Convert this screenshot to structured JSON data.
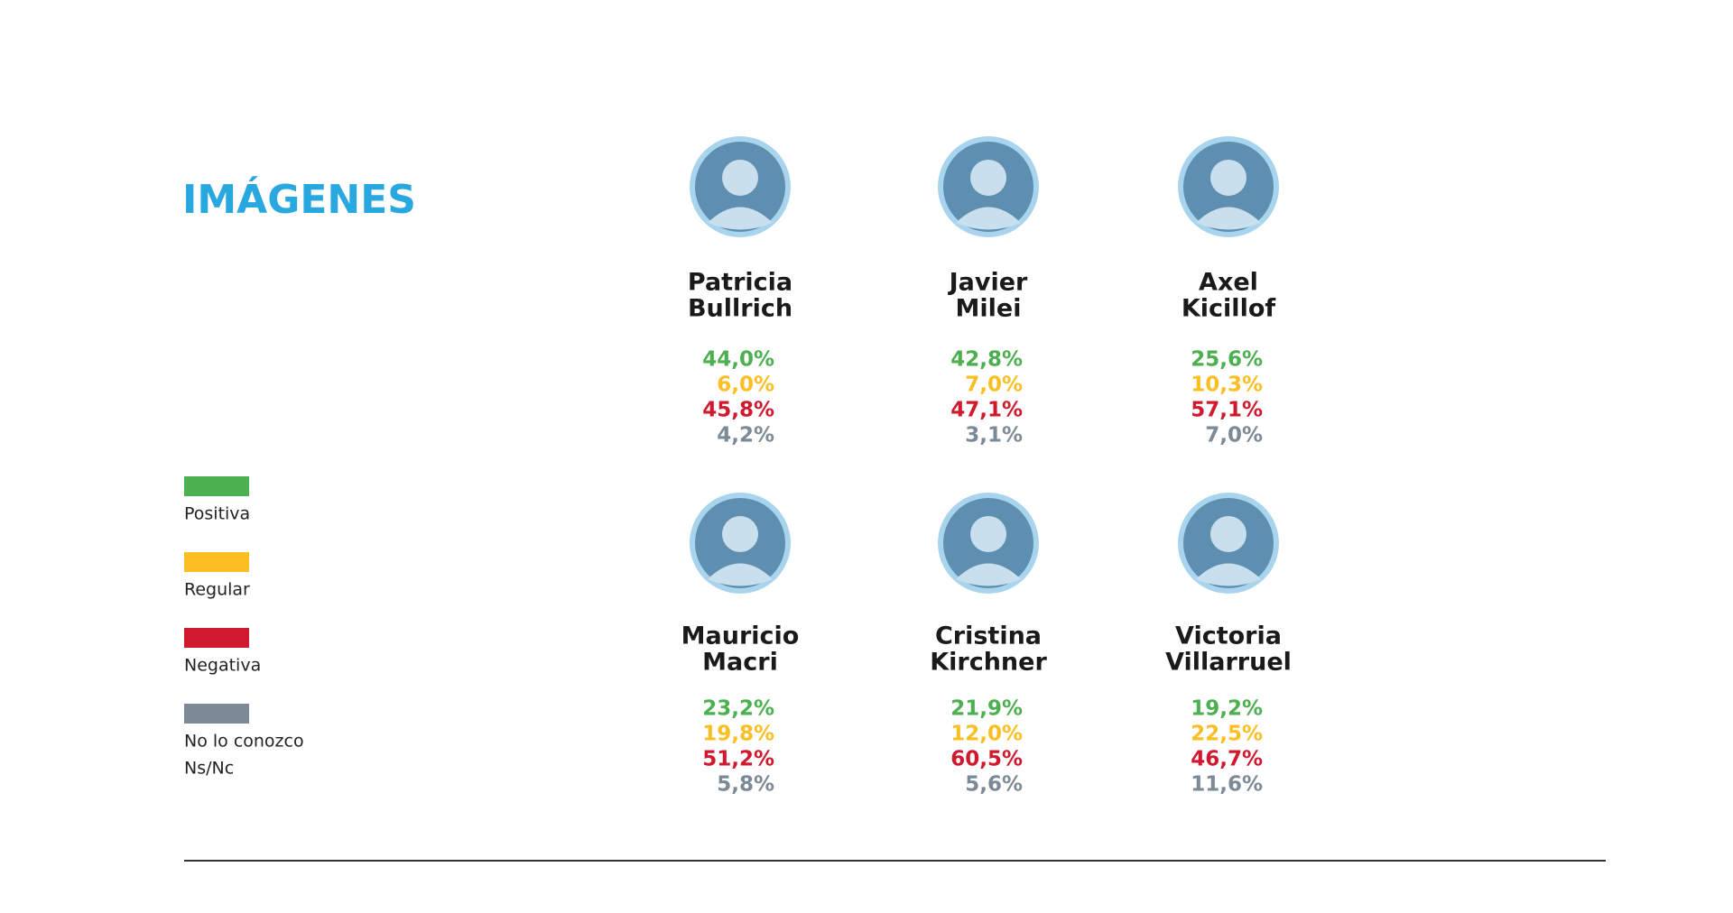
{
  "title": "IMÁGENES",
  "legend": {
    "items": [
      {
        "lines": [
          "Positiva"
        ],
        "color": "#4caf50"
      },
      {
        "lines": [
          "Regular"
        ],
        "color": "#fbbf24"
      },
      {
        "lines": [
          "Negativa"
        ],
        "color": "#d0192e"
      },
      {
        "lines": [
          "No lo conozco",
          "Ns/Nc"
        ],
        "color": "#7b8a96"
      }
    ]
  },
  "candidates": [
    {
      "name": [
        "Patricia",
        "Bullrich"
      ],
      "values": [
        "44,0%",
        "6,0%",
        "45,8%",
        "4,2%"
      ]
    },
    {
      "name": [
        "Javier",
        "Milei"
      ],
      "values": [
        "42,8%",
        "7,0%",
        "47,1%",
        "3,1%"
      ]
    },
    {
      "name": [
        "Axel",
        "Kicillof"
      ],
      "values": [
        "25,6%",
        "10,3%",
        "57,1%",
        "7,0%"
      ]
    },
    {
      "name": [
        "Mauricio",
        "Macri"
      ],
      "values": [
        "23,2%",
        "19,8%",
        "51,2%",
        "5,8%"
      ]
    },
    {
      "name": [
        "Cristina",
        "Kirchner"
      ],
      "values": [
        "21,9%",
        "12,0%",
        "60,5%",
        "5,6%"
      ]
    },
    {
      "name": [
        "Victoria",
        "Villarruel"
      ],
      "values": [
        "19,2%",
        "22,5%",
        "46,7%",
        "11,6%"
      ]
    }
  ]
}
